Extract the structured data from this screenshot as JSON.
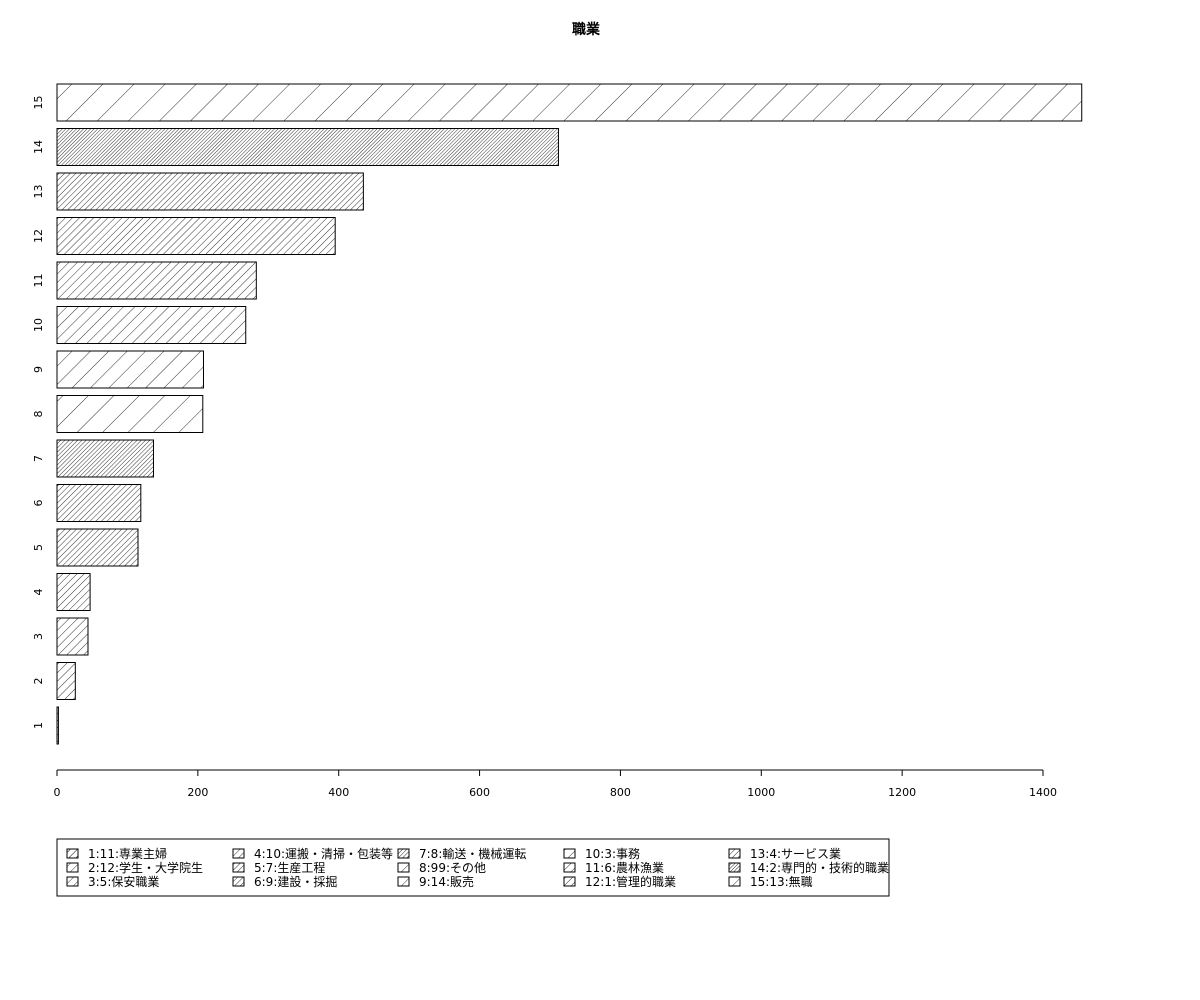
{
  "chart_data": {
    "type": "bar",
    "orientation": "horizontal",
    "title": "職業",
    "xlabel": "",
    "ylabel": "",
    "xlim": [
      0,
      1400
    ],
    "x_ticks": [
      0,
      200,
      400,
      600,
      800,
      1000,
      1200,
      1400
    ],
    "categories": [
      "1",
      "2",
      "3",
      "4",
      "5",
      "6",
      "7",
      "8",
      "9",
      "10",
      "11",
      "12",
      "13",
      "14",
      "15"
    ],
    "values": [
      2,
      26,
      44,
      47,
      115,
      119,
      137,
      207,
      208,
      268,
      283,
      395,
      435,
      712,
      1455
    ],
    "fill": "hatched",
    "legend": {
      "position": "bottom",
      "entries": [
        "1:11:専業主婦",
        "2:12:学生・大学院生",
        "3:5:保安職業",
        "4:10:運搬・清掃・包装等",
        "5:7:生産工程",
        "6:9:建設・採掘",
        "7:8:輸送・機械運転",
        "8:99:その他",
        "9:14:販売",
        "10:3:事務",
        "11:6:農林漁業",
        "12:1:管理的職業",
        "13:4:サービス業",
        "14:2:専門的・技術的職業",
        "15:13:無職"
      ]
    }
  }
}
